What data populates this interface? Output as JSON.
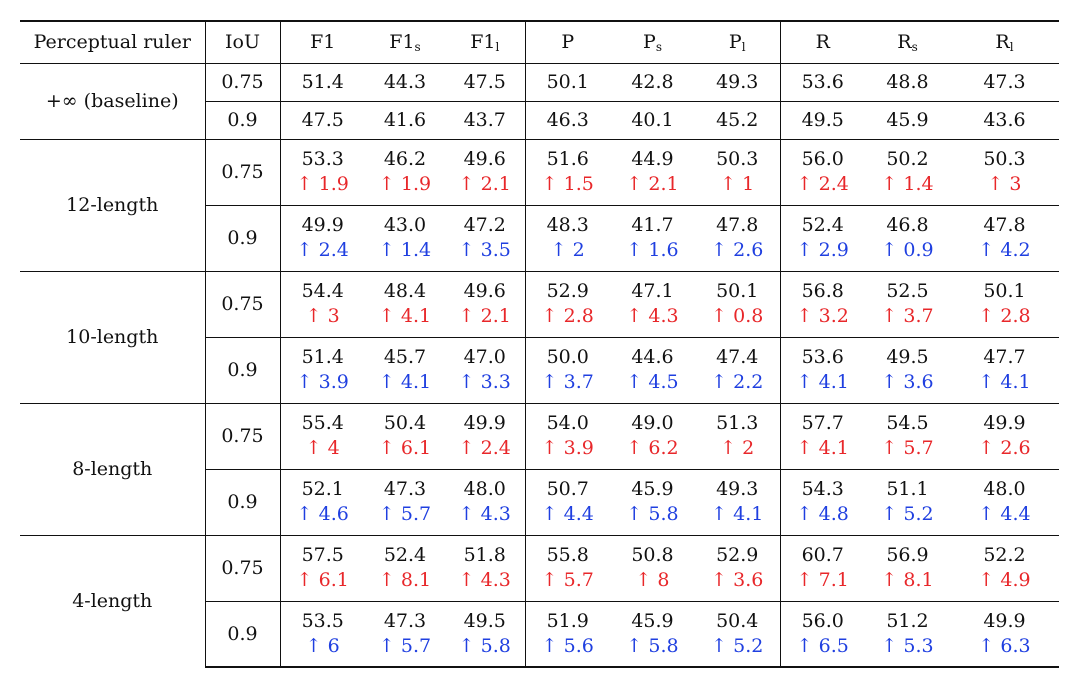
{
  "header": {
    "ruler": "Perceptual ruler",
    "iou": "IoU",
    "cols": [
      {
        "base": "F1",
        "sub": ""
      },
      {
        "base": "F1",
        "sub": "s"
      },
      {
        "base": "F1",
        "sub": "l"
      },
      {
        "base": "P",
        "sub": ""
      },
      {
        "base": "P",
        "sub": "s"
      },
      {
        "base": "P",
        "sub": "l"
      },
      {
        "base": "R",
        "sub": ""
      },
      {
        "base": "R",
        "sub": "s"
      },
      {
        "base": "R",
        "sub": "l"
      }
    ]
  },
  "colors": {
    "delta_075": "#e8272a",
    "delta_09": "#1f3fe0"
  },
  "groups": [
    {
      "ruler": "+∞ (baseline)",
      "rows": [
        {
          "iou": "0.75",
          "values": [
            "51.4",
            "44.3",
            "47.5",
            "50.1",
            "42.8",
            "49.3",
            "53.6",
            "48.8",
            "47.3"
          ],
          "deltas": []
        },
        {
          "iou": "0.9",
          "values": [
            "47.5",
            "41.6",
            "43.7",
            "46.3",
            "40.1",
            "45.2",
            "49.5",
            "45.9",
            "43.6"
          ],
          "deltas": []
        }
      ]
    },
    {
      "ruler": "12-length",
      "rows": [
        {
          "iou": "0.75",
          "values": [
            "53.3",
            "46.2",
            "49.6",
            "51.6",
            "44.9",
            "50.3",
            "56.0",
            "50.2",
            "50.3"
          ],
          "deltas": [
            "↑ 1.9",
            "↑ 1.9",
            "↑ 2.1",
            "↑ 1.5",
            "↑ 2.1",
            "↑ 1",
            "↑ 2.4",
            "↑ 1.4",
            "↑ 3"
          ]
        },
        {
          "iou": "0.9",
          "values": [
            "49.9",
            "43.0",
            "47.2",
            "48.3",
            "41.7",
            "47.8",
            "52.4",
            "46.8",
            "47.8"
          ],
          "deltas": [
            "↑ 2.4",
            "↑ 1.4",
            "↑ 3.5",
            "↑ 2",
            "↑ 1.6",
            "↑ 2.6",
            "↑ 2.9",
            "↑ 0.9",
            "↑ 4.2"
          ]
        }
      ]
    },
    {
      "ruler": "10-length",
      "rows": [
        {
          "iou": "0.75",
          "values": [
            "54.4",
            "48.4",
            "49.6",
            "52.9",
            "47.1",
            "50.1",
            "56.8",
            "52.5",
            "50.1"
          ],
          "deltas": [
            "↑ 3",
            "↑ 4.1",
            "↑ 2.1",
            "↑ 2.8",
            "↑ 4.3",
            "↑ 0.8",
            "↑ 3.2",
            "↑ 3.7",
            "↑ 2.8"
          ]
        },
        {
          "iou": "0.9",
          "values": [
            "51.4",
            "45.7",
            "47.0",
            "50.0",
            "44.6",
            "47.4",
            "53.6",
            "49.5",
            "47.7"
          ],
          "deltas": [
            "↑ 3.9",
            "↑ 4.1",
            "↑ 3.3",
            "↑ 3.7",
            "↑ 4.5",
            "↑ 2.2",
            "↑ 4.1",
            "↑ 3.6",
            "↑ 4.1"
          ]
        }
      ]
    },
    {
      "ruler": "8-length",
      "rows": [
        {
          "iou": "0.75",
          "values": [
            "55.4",
            "50.4",
            "49.9",
            "54.0",
            "49.0",
            "51.3",
            "57.7",
            "54.5",
            "49.9"
          ],
          "deltas": [
            "↑ 4",
            "↑ 6.1",
            "↑ 2.4",
            "↑ 3.9",
            "↑ 6.2",
            "↑ 2",
            "↑ 4.1",
            "↑ 5.7",
            "↑ 2.6"
          ]
        },
        {
          "iou": "0.9",
          "values": [
            "52.1",
            "47.3",
            "48.0",
            "50.7",
            "45.9",
            "49.3",
            "54.3",
            "51.1",
            "48.0"
          ],
          "deltas": [
            "↑ 4.6",
            "↑ 5.7",
            "↑ 4.3",
            "↑ 4.4",
            "↑ 5.8",
            "↑ 4.1",
            "↑ 4.8",
            "↑ 5.2",
            "↑ 4.4"
          ]
        }
      ]
    },
    {
      "ruler": "4-length",
      "rows": [
        {
          "iou": "0.75",
          "values": [
            "57.5",
            "52.4",
            "51.8",
            "55.8",
            "50.8",
            "52.9",
            "60.7",
            "56.9",
            "52.2"
          ],
          "deltas": [
            "↑ 6.1",
            "↑ 8.1",
            "↑ 4.3",
            "↑ 5.7",
            "↑ 8",
            "↑ 3.6",
            "↑ 7.1",
            "↑ 8.1",
            "↑ 4.9"
          ]
        },
        {
          "iou": "0.9",
          "values": [
            "53.5",
            "47.3",
            "49.5",
            "51.9",
            "45.9",
            "50.4",
            "56.0",
            "51.2",
            "49.9"
          ],
          "deltas": [
            "↑ 6",
            "↑ 5.7",
            "↑ 5.8",
            "↑ 5.6",
            "↑ 5.8",
            "↑ 5.2",
            "↑ 6.5",
            "↑ 5.3",
            "↑ 6.3"
          ]
        }
      ]
    }
  ]
}
